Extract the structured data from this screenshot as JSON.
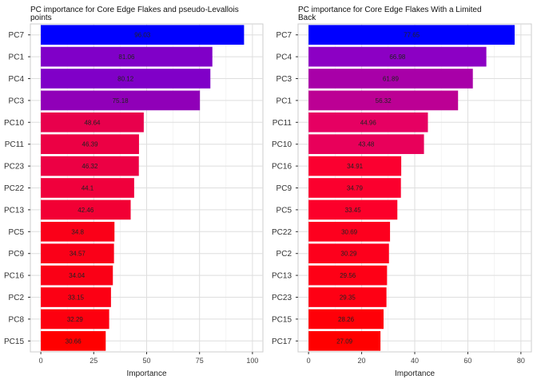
{
  "chart_data": [
    {
      "type": "bar",
      "orientation": "horizontal",
      "title": "PC importance for Core Edge Flakes and pseudo-Levallois points",
      "title_lines": [
        "PC importance for Core Edge Flakes and pseudo-Levallois",
        "points"
      ],
      "xlabel": "Importance",
      "ylabel": "",
      "xlim": [
        0,
        100
      ],
      "xticks": [
        0,
        25,
        50,
        75,
        100
      ],
      "grid": true,
      "categories": [
        "PC7",
        "PC1",
        "PC4",
        "PC3",
        "PC10",
        "PC11",
        "PC23",
        "PC22",
        "PC13",
        "PC5",
        "PC9",
        "PC16",
        "PC2",
        "PC8",
        "PC15"
      ],
      "values": [
        96.03,
        81.06,
        80.12,
        75.18,
        48.64,
        46.39,
        46.32,
        44.1,
        42.46,
        34.8,
        34.57,
        34.04,
        33.15,
        32.29,
        30.66
      ],
      "value_labels": [
        "96.03",
        "81.06",
        "80.12",
        "75.18",
        "48.64",
        "46.39",
        "46.32",
        "44.1",
        "42.46",
        "34.8",
        "34.57",
        "34.04",
        "33.15",
        "32.29",
        "30.66"
      ],
      "colors": [
        "#0000ff",
        "#8000c8",
        "#8000c8",
        "#9000b8",
        "#e8004c",
        "#ec0044",
        "#ec0044",
        "#f0003c",
        "#f20034",
        "#fa0018",
        "#fa0018",
        "#fa0016",
        "#fc0014",
        "#fd000f",
        "#ff0000"
      ]
    },
    {
      "type": "bar",
      "orientation": "horizontal",
      "title": "PC importance for Core Edge Flakes With a Limited Back",
      "title_lines": [
        "PC importance for Core Edge Flakes With a Limited",
        "Back"
      ],
      "xlabel": "Importance",
      "ylabel": "",
      "xlim": [
        0,
        80
      ],
      "xticks": [
        0,
        20,
        40,
        60,
        80
      ],
      "grid": true,
      "categories": [
        "PC7",
        "PC4",
        "PC3",
        "PC1",
        "PC11",
        "PC10",
        "PC16",
        "PC9",
        "PC5",
        "PC22",
        "PC2",
        "PC13",
        "PC23",
        "PC15",
        "PC17"
      ],
      "values": [
        77.65,
        66.98,
        61.89,
        56.32,
        44.96,
        43.48,
        34.91,
        34.79,
        33.45,
        30.69,
        30.29,
        29.56,
        29.35,
        28.26,
        27.09
      ],
      "value_labels": [
        "77.65",
        "66.98",
        "61.89",
        "56.32",
        "44.96",
        "43.48",
        "34.91",
        "34.79",
        "33.45",
        "30.69",
        "30.29",
        "29.56",
        "29.35",
        "28.26",
        "27.09"
      ],
      "colors": [
        "#0000ff",
        "#8c00c4",
        "#a800a8",
        "#bc0094",
        "#e60062",
        "#e8005a",
        "#fb0030",
        "#fb002e",
        "#fc002a",
        "#fd001e",
        "#fd001c",
        "#fe0016",
        "#fe0014",
        "#ff0008",
        "#ff0000"
      ]
    }
  ]
}
